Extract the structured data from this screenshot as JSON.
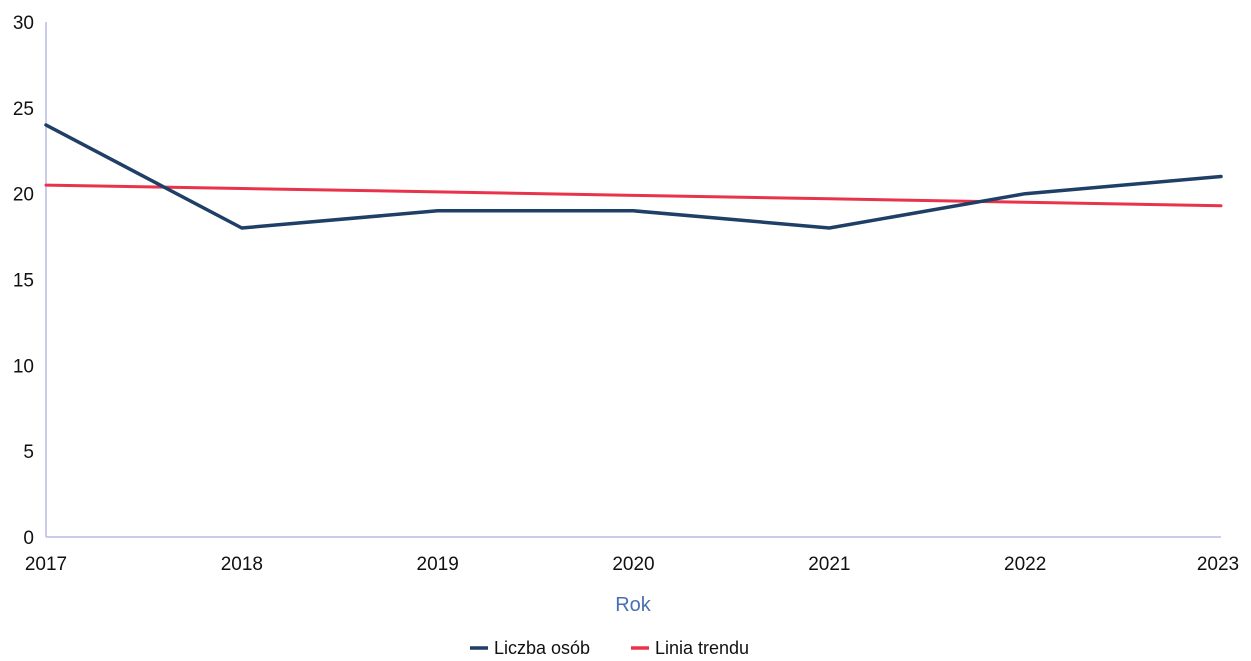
{
  "chart_data": {
    "type": "line",
    "x": [
      "2017",
      "2018",
      "2019",
      "2020",
      "2021",
      "2022",
      "2023"
    ],
    "series": [
      {
        "name": "Liczba osób",
        "values": [
          24,
          18,
          19,
          19,
          18,
          20,
          21
        ],
        "color": "#1f3f66"
      },
      {
        "name": "Linia trendu",
        "values": [
          20.5,
          20.3,
          20.1,
          19.9,
          19.7,
          19.5,
          19.3
        ],
        "color": "#e8334a"
      }
    ],
    "xlabel": "Rok",
    "ylabel": "",
    "ylim": [
      0,
      30
    ],
    "yticks": [
      "0",
      "5",
      "10",
      "15",
      "20",
      "25",
      "30"
    ],
    "grid": false,
    "legend_position": "bottom",
    "axis_color": "#b8bce0",
    "xlabel_color": "#4a6fb5"
  }
}
